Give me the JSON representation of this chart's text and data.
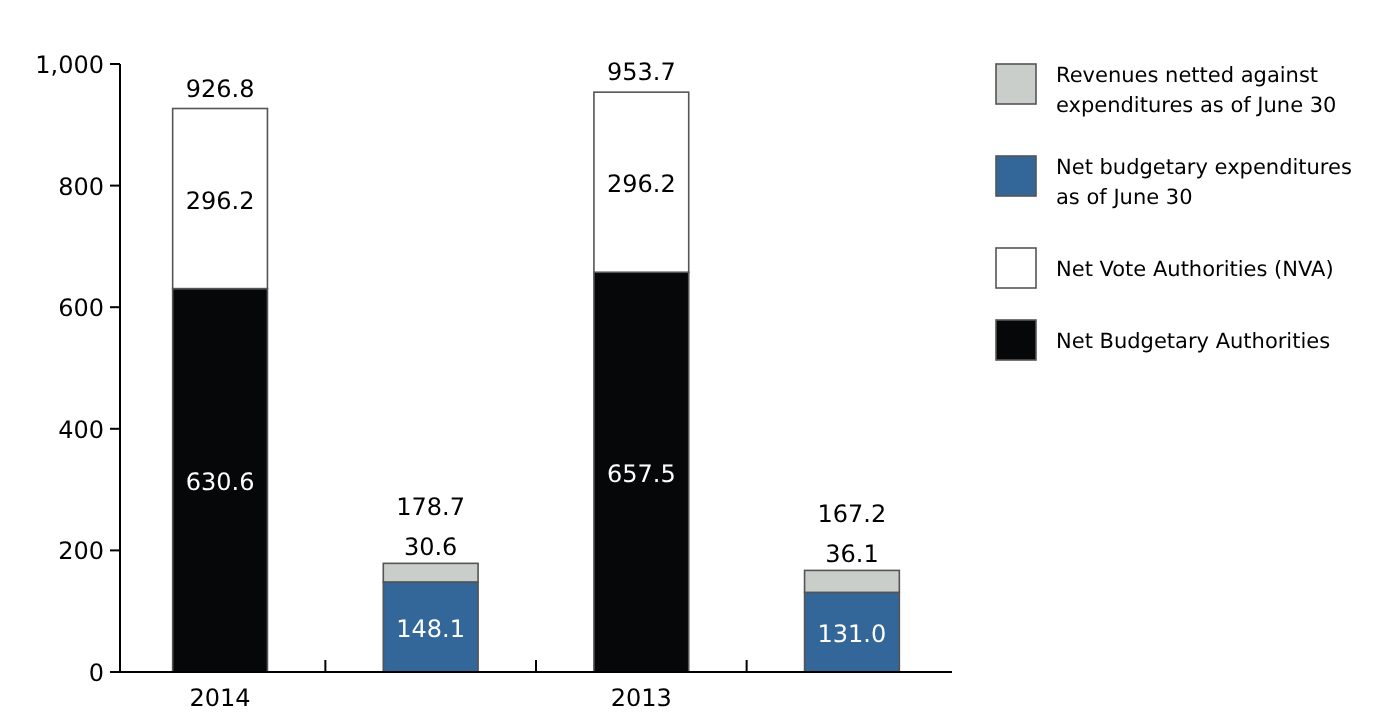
{
  "chart_data": {
    "type": "bar",
    "stacked": true,
    "categories": [
      "2014",
      null,
      "2013",
      null
    ],
    "series": [
      {
        "name": "Net Budgetary Authorities",
        "color": "#060708",
        "values": [
          630.6,
          null,
          657.5,
          null
        ],
        "value_labels": [
          "630.6",
          null,
          "657.5",
          null
        ]
      },
      {
        "name": "Net Vote Authorities (NVA)",
        "color": "#ffffff",
        "values": [
          296.2,
          null,
          296.2,
          null
        ],
        "value_labels": [
          "296.2",
          null,
          "296.2",
          null
        ]
      },
      {
        "name": "Net budgetary expenditures as of June 30",
        "color": "#336699",
        "values": [
          null,
          148.1,
          null,
          131.0
        ],
        "value_labels": [
          null,
          "148.1",
          null,
          "131.0"
        ]
      },
      {
        "name": "Revenues netted against expenditures as of June 30",
        "color": "#c9cecb",
        "values": [
          null,
          30.6,
          null,
          36.1
        ],
        "value_labels": [
          null,
          "30.6",
          null,
          "36.1"
        ]
      }
    ],
    "totals": [
      "926.8",
      "178.7",
      "953.7",
      "167.2"
    ],
    "ylim": [
      0,
      1000
    ],
    "yticks": [
      0,
      200,
      400,
      600,
      800,
      {
        "value": 1000,
        "label": "1,000"
      }
    ],
    "grid": false,
    "legend": "right"
  }
}
